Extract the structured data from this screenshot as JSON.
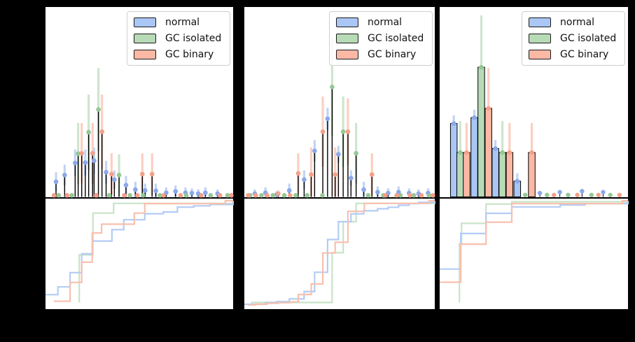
{
  "note": "Matplotlib-style figure on black background; axis tick labels are black-on-black and not legible, so all data coordinates below are fractions (0-1) of each axis span.",
  "colors": {
    "normal": {
      "marker": "#8AA8EA",
      "fill": "#A9C6F4",
      "error": "#C3D4F4",
      "ecdf": "#B3CCF6"
    },
    "gc_isolated": {
      "marker": "#95C795",
      "fill": "#B7DBB7",
      "error": "#CEE5CE",
      "ecdf": "#C8E3C8"
    },
    "gc_binary": {
      "marker": "#F59F88",
      "fill": "#FBB8A4",
      "error": "#FBCFC2",
      "ecdf": "#F8C0AE"
    }
  },
  "legend": {
    "items": [
      {
        "key": "normal",
        "label": "normal"
      },
      {
        "key": "gc_isolated",
        "label": "GC isolated"
      },
      {
        "key": "gc_binary",
        "label": "GC binary"
      }
    ]
  },
  "chart_data": [
    {
      "panel": 1,
      "type": "bar",
      "hist_style": "stem",
      "units": "axis-fraction [x, height, error_top]",
      "hist": {
        "normal": [
          [
            0.056,
            0.08,
            0.13
          ],
          [
            0.102,
            0.115,
            0.17
          ],
          [
            0.158,
            0.179,
            0.25
          ],
          [
            0.212,
            0.181,
            0.25
          ],
          [
            0.259,
            0.191,
            0.26
          ],
          [
            0.323,
            0.13,
            0.19
          ],
          [
            0.367,
            0.091,
            0.14
          ],
          [
            0.429,
            0.062,
            0.11
          ],
          [
            0.479,
            0.038,
            0.08
          ],
          [
            0.531,
            0.034,
            0.07
          ],
          [
            0.588,
            0.032,
            0.07
          ],
          [
            0.643,
            0.022,
            0.05
          ],
          [
            0.693,
            0.029,
            0.06
          ],
          [
            0.746,
            0.022,
            0.05
          ],
          [
            0.78,
            0.02,
            0.045
          ],
          [
            0.814,
            0.017,
            0.04
          ],
          [
            0.852,
            0.022,
            0.05
          ],
          [
            0.917,
            0.017,
            0.04
          ]
        ],
        "gc_isolated": [
          [
            0.174,
            0.228,
            0.39
          ],
          [
            0.23,
            0.341,
            0.54
          ],
          [
            0.282,
            0.461,
            0.68
          ],
          [
            0.392,
            0.115,
            0.225
          ],
          [
            0.07,
            0.008,
            0.016
          ],
          [
            0.14,
            0.008,
            0.016
          ],
          [
            0.34,
            0.008,
            0.016
          ],
          [
            0.45,
            0.008,
            0.016
          ],
          [
            0.52,
            0.008,
            0.016
          ],
          [
            0.61,
            0.008,
            0.016
          ],
          [
            0.75,
            0.008,
            0.016
          ],
          [
            0.88,
            0.008,
            0.016
          ],
          [
            0.97,
            0.008,
            0.016
          ]
        ],
        "gc_binary": [
          [
            0.193,
            0.23,
            0.39
          ],
          [
            0.251,
            0.23,
            0.39
          ],
          [
            0.301,
            0.344,
            0.54
          ],
          [
            0.352,
            0.12,
            0.23
          ],
          [
            0.516,
            0.12,
            0.23
          ],
          [
            0.568,
            0.12,
            0.23
          ],
          [
            0.045,
            0.008,
            0.016
          ],
          [
            0.115,
            0.008,
            0.016
          ],
          [
            0.27,
            0.008,
            0.016
          ],
          [
            0.42,
            0.008,
            0.016
          ],
          [
            0.49,
            0.008,
            0.016
          ],
          [
            0.63,
            0.008,
            0.016
          ],
          [
            0.72,
            0.008,
            0.016
          ],
          [
            0.83,
            0.008,
            0.016
          ],
          [
            0.93,
            0.008,
            0.016
          ],
          [
            0.99,
            0.008,
            0.016
          ]
        ]
      },
      "ecdf": {
        "normal": [
          [
            0,
            0.105
          ],
          [
            0.066,
            0.179
          ],
          [
            0.131,
            0.315
          ],
          [
            0.193,
            0.494
          ],
          [
            0.249,
            0.616
          ],
          [
            0.354,
            0.724
          ],
          [
            0.417,
            0.819
          ],
          [
            0.529,
            0.876
          ],
          [
            0.628,
            0.893
          ],
          [
            0.703,
            0.939
          ],
          [
            0.79,
            0.951
          ],
          [
            0.877,
            0.964
          ],
          [
            1,
            1
          ]
        ],
        "gc_isolated": [
          [
            0.18,
            0.03
          ],
          [
            0.18,
            0.483
          ],
          [
            0.253,
            0.882
          ],
          [
            0.363,
            0.975
          ],
          [
            1,
            1
          ]
        ],
        "gc_binary": [
          [
            0.044,
            0.042
          ],
          [
            0.131,
            0.221
          ],
          [
            0.193,
            0.414
          ],
          [
            0.249,
            0.693
          ],
          [
            0.299,
            0.777
          ],
          [
            0.473,
            0.882
          ],
          [
            0.529,
            0.973
          ],
          [
            0.958,
            1
          ],
          [
            1,
            1
          ]
        ]
      }
    },
    {
      "panel": 2,
      "type": "bar",
      "hist_style": "stem",
      "units": "axis-fraction [x, height, error_top]",
      "hist": {
        "normal": [
          [
            0.055,
            0.017,
            0.04
          ],
          [
            0.111,
            0.022,
            0.05
          ],
          [
            0.17,
            0.013,
            0.03
          ],
          [
            0.236,
            0.034,
            0.07
          ],
          [
            0.314,
            0.091,
            0.14
          ],
          [
            0.369,
            0.243,
            0.3
          ],
          [
            0.437,
            0.412,
            0.47
          ],
          [
            0.494,
            0.225,
            0.27
          ],
          [
            0.56,
            0.099,
            0.14
          ],
          [
            0.627,
            0.038,
            0.08
          ],
          [
            0.7,
            0.025,
            0.055
          ],
          [
            0.755,
            0.02,
            0.045
          ],
          [
            0.81,
            0.025,
            0.055
          ],
          [
            0.865,
            0.02,
            0.045
          ],
          [
            0.915,
            0.017,
            0.04
          ],
          [
            0.965,
            0.02,
            0.045
          ]
        ],
        "gc_isolated": [
          [
            0.461,
            0.58,
            0.84
          ],
          [
            0.519,
            0.344,
            0.53
          ],
          [
            0.587,
            0.23,
            0.39
          ],
          [
            0.03,
            0.008,
            0.016
          ],
          [
            0.09,
            0.008,
            0.016
          ],
          [
            0.15,
            0.008,
            0.016
          ],
          [
            0.21,
            0.008,
            0.016
          ],
          [
            0.27,
            0.008,
            0.016
          ],
          [
            0.33,
            0.008,
            0.016
          ],
          [
            0.41,
            0.008,
            0.016
          ],
          [
            0.65,
            0.008,
            0.016
          ],
          [
            0.73,
            0.008,
            0.016
          ],
          [
            0.82,
            0.008,
            0.016
          ],
          [
            0.89,
            0.008,
            0.016
          ],
          [
            0.97,
            0.008,
            0.016
          ]
        ],
        "gc_binary": [
          [
            0.283,
            0.124,
            0.23
          ],
          [
            0.351,
            0.118,
            0.26
          ],
          [
            0.412,
            0.344,
            0.53
          ],
          [
            0.477,
            0.118,
            0.26
          ],
          [
            0.544,
            0.344,
            0.52
          ],
          [
            0.67,
            0.118,
            0.23
          ],
          [
            0.02,
            0.008,
            0.016
          ],
          [
            0.06,
            0.008,
            0.016
          ],
          [
            0.12,
            0.008,
            0.016
          ],
          [
            0.178,
            0.017,
            0.035
          ],
          [
            0.24,
            0.008,
            0.016
          ],
          [
            0.74,
            0.008,
            0.016
          ],
          [
            0.8,
            0.008,
            0.016
          ],
          [
            0.87,
            0.008,
            0.016
          ],
          [
            0.93,
            0.008,
            0.016
          ],
          [
            0.99,
            0.008,
            0.016
          ]
        ]
      },
      "ecdf": {
        "normal": [
          [
            0,
            0.013
          ],
          [
            0.111,
            0.03
          ],
          [
            0.17,
            0.039
          ],
          [
            0.236,
            0.065
          ],
          [
            0.314,
            0.134
          ],
          [
            0.369,
            0.318
          ],
          [
            0.437,
            0.63
          ],
          [
            0.494,
            0.8
          ],
          [
            0.56,
            0.875
          ],
          [
            0.627,
            0.904
          ],
          [
            0.7,
            0.923
          ],
          [
            0.755,
            0.938
          ],
          [
            0.81,
            0.957
          ],
          [
            0.865,
            0.972
          ],
          [
            0.915,
            0.985
          ],
          [
            1,
            1
          ]
        ],
        "gc_isolated": [
          [
            0.034,
            0.03
          ],
          [
            0.461,
            0.504
          ],
          [
            0.519,
            0.8
          ],
          [
            0.587,
            0.975
          ],
          [
            1,
            1
          ]
        ],
        "gc_binary": [
          [
            0.02,
            0.007
          ],
          [
            0.06,
            0.014
          ],
          [
            0.12,
            0.022
          ],
          [
            0.178,
            0.029
          ],
          [
            0.24,
            0.036
          ],
          [
            0.283,
            0.106
          ],
          [
            0.351,
            0.207
          ],
          [
            0.412,
            0.502
          ],
          [
            0.477,
            0.604
          ],
          [
            0.544,
            0.899
          ],
          [
            0.63,
            0.975
          ],
          [
            0.97,
            1
          ],
          [
            1,
            1
          ]
        ]
      }
    },
    {
      "panel": 3,
      "type": "bar",
      "hist_style": "bar",
      "units": "axis-fraction [x, height, error_top]",
      "hist": {
        "normal": [
          [
            0.075,
            0.387,
            0.43
          ],
          [
            0.184,
            0.418,
            0.46
          ],
          [
            0.296,
            0.255,
            0.3
          ],
          [
            0.412,
            0.083,
            0.125
          ]
        ],
        "gc_isolated": [
          [
            0.109,
            0.234,
            0.4
          ],
          [
            0.221,
            0.684,
            0.957
          ],
          [
            0.333,
            0.234,
            0.4
          ]
        ],
        "gc_binary": [
          [
            0.143,
            0.234,
            0.39
          ],
          [
            0.259,
            0.467,
            0.68
          ],
          [
            0.371,
            0.234,
            0.39
          ],
          [
            0.489,
            0.234,
            0.39
          ]
        ]
      },
      "dots": {
        "normal": [
          [
            0.532,
            0.02
          ],
          [
            0.638,
            0.025
          ],
          [
            0.756,
            0.03
          ],
          [
            0.868,
            0.025
          ]
        ],
        "gc_isolated": [
          [
            0.454,
            0.01
          ],
          [
            0.57,
            0.01
          ],
          [
            0.682,
            0.01
          ],
          [
            0.806,
            0.01
          ],
          [
            0.906,
            0.01
          ]
        ],
        "gc_binary": [
          [
            0.607,
            0.01
          ],
          [
            0.731,
            0.01
          ],
          [
            0.843,
            0.01
          ],
          [
            0.955,
            0.01
          ]
        ]
      },
      "ecdf": {
        "normal": [
          [
            0,
            0.349
          ],
          [
            0.112,
            0.687
          ],
          [
            0.246,
            0.88
          ],
          [
            0.383,
            0.941
          ],
          [
            0.64,
            0.96
          ],
          [
            0.773,
            0.973
          ],
          [
            1,
            1
          ]
        ],
        "gc_isolated": [
          [
            0.105,
            0.03
          ],
          [
            0.105,
            0.59
          ],
          [
            0.116,
            0.784
          ],
          [
            0.246,
            0.968
          ],
          [
            0.383,
            0.99
          ],
          [
            1,
            1
          ]
        ],
        "gc_binary": [
          [
            0,
            0.223
          ],
          [
            0.112,
            0.586
          ],
          [
            0.246,
            0.796
          ],
          [
            0.383,
            0.973
          ],
          [
            0.97,
            1
          ],
          [
            1,
            1
          ]
        ]
      }
    }
  ]
}
